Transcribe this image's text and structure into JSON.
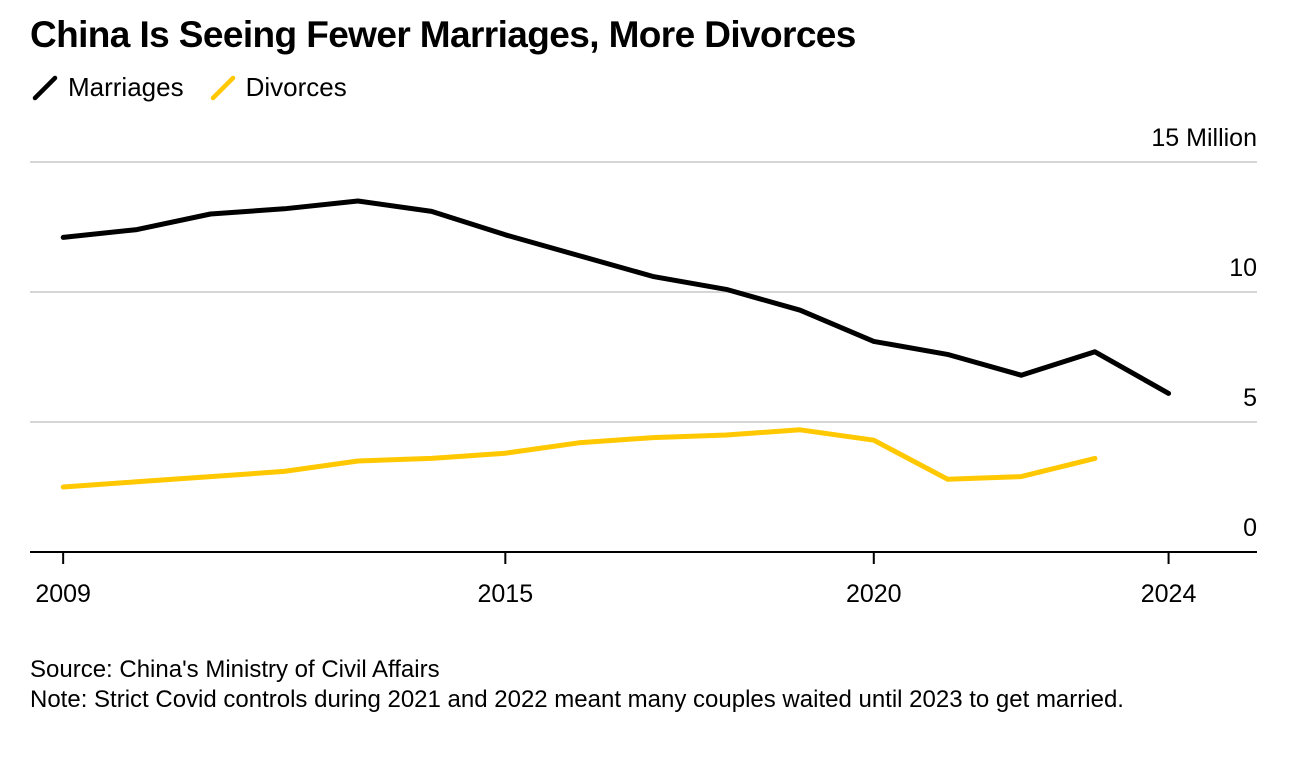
{
  "title": "China Is Seeing Fewer Marriages, More Divorces",
  "legend": [
    {
      "label": "Marriages",
      "color": "#000000"
    },
    {
      "label": "Divorces",
      "color": "#ffc800"
    }
  ],
  "footer": {
    "source": "Source: China's Ministry of Civil Affairs",
    "note": "Note: Strict Covid controls during 2021 and 2022 meant many couples waited until 2023 to get married."
  },
  "chart_data": {
    "type": "line",
    "title": "China Is Seeing Fewer Marriages, More Divorces",
    "xlabel": "",
    "ylabel": "",
    "x": [
      2009,
      2010,
      2011,
      2012,
      2013,
      2014,
      2015,
      2016,
      2017,
      2018,
      2019,
      2020,
      2021,
      2022,
      2023,
      2024
    ],
    "xlim": [
      2008.55,
      2025.2
    ],
    "ylim": [
      0,
      15
    ],
    "x_ticks": [
      2009,
      2015,
      2020,
      2024
    ],
    "x_tick_labels": [
      "2009",
      "2015",
      "2020",
      "2024"
    ],
    "y_ticks": [
      0,
      5,
      10,
      15
    ],
    "y_tick_labels": [
      "0",
      "5",
      "10",
      "15 Million"
    ],
    "grid": true,
    "legend_position": "top-left",
    "series": [
      {
        "name": "Marriages",
        "color": "#000000",
        "x": [
          2009,
          2010,
          2011,
          2012,
          2013,
          2014,
          2015,
          2016,
          2017,
          2018,
          2019,
          2020,
          2021,
          2022,
          2023,
          2024
        ],
        "values": [
          12.1,
          12.4,
          13.0,
          13.2,
          13.5,
          13.1,
          12.2,
          11.4,
          10.6,
          10.1,
          9.3,
          8.1,
          7.6,
          6.8,
          7.7,
          6.1
        ]
      },
      {
        "name": "Divorces",
        "color": "#ffc800",
        "x": [
          2009,
          2010,
          2011,
          2012,
          2013,
          2014,
          2015,
          2016,
          2017,
          2018,
          2019,
          2020,
          2021,
          2022,
          2023
        ],
        "values": [
          2.5,
          2.7,
          2.9,
          3.1,
          3.5,
          3.6,
          3.8,
          4.2,
          4.4,
          4.5,
          4.7,
          4.3,
          2.8,
          2.9,
          3.6
        ]
      }
    ]
  }
}
